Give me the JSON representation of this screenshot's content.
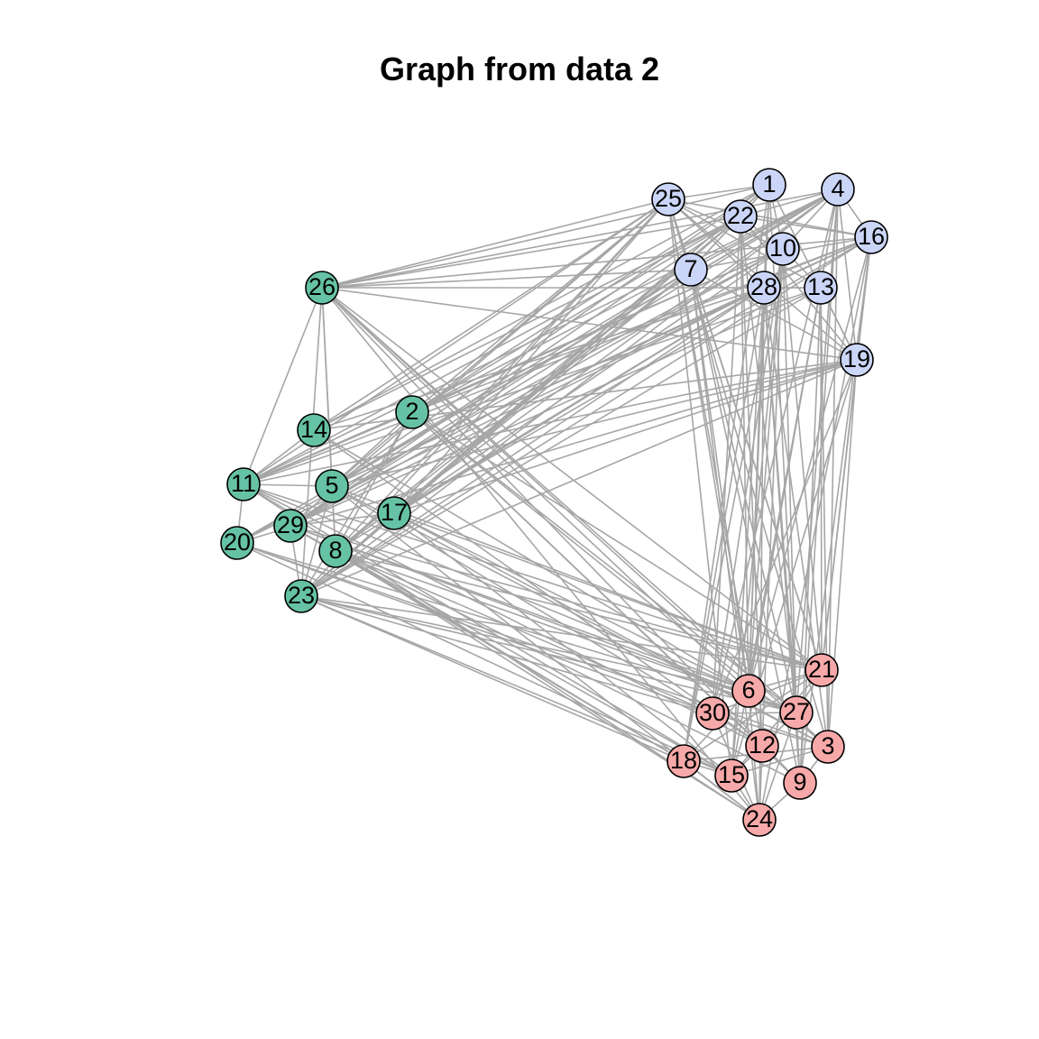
{
  "title": "Graph from data 2",
  "colors": {
    "background": "#ffffff",
    "edge": "#a6a6a6",
    "node_stroke": "#000000",
    "group_green": "#66c2a5",
    "group_blue": "#cbd5f7",
    "group_red": "#f7a8a8"
  },
  "nodes": [
    {
      "id": "1",
      "group": "blue"
    },
    {
      "id": "2",
      "group": "green"
    },
    {
      "id": "3",
      "group": "red"
    },
    {
      "id": "4",
      "group": "blue"
    },
    {
      "id": "5",
      "group": "green"
    },
    {
      "id": "6",
      "group": "red"
    },
    {
      "id": "7",
      "group": "blue"
    },
    {
      "id": "8",
      "group": "green"
    },
    {
      "id": "9",
      "group": "red"
    },
    {
      "id": "10",
      "group": "blue"
    },
    {
      "id": "11",
      "group": "green"
    },
    {
      "id": "12",
      "group": "red"
    },
    {
      "id": "13",
      "group": "blue"
    },
    {
      "id": "14",
      "group": "green"
    },
    {
      "id": "15",
      "group": "red"
    },
    {
      "id": "16",
      "group": "blue"
    },
    {
      "id": "17",
      "group": "green"
    },
    {
      "id": "18",
      "group": "red"
    },
    {
      "id": "19",
      "group": "blue"
    },
    {
      "id": "20",
      "group": "green"
    },
    {
      "id": "21",
      "group": "red"
    },
    {
      "id": "22",
      "group": "blue"
    },
    {
      "id": "23",
      "group": "green"
    },
    {
      "id": "24",
      "group": "red"
    },
    {
      "id": "25",
      "group": "blue"
    },
    {
      "id": "26",
      "group": "green"
    },
    {
      "id": "27",
      "group": "red"
    },
    {
      "id": "28",
      "group": "blue"
    },
    {
      "id": "29",
      "group": "green"
    },
    {
      "id": "30",
      "group": "red"
    }
  ]
}
